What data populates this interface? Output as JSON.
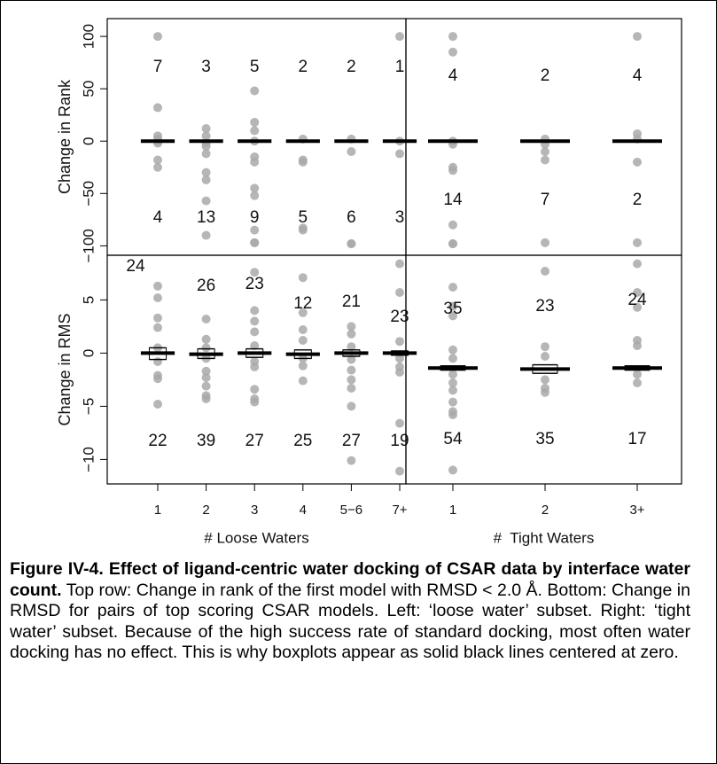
{
  "chart_data": [
    {
      "type": "strip",
      "ylabel": "Change in Rank",
      "ylim": [
        -109,
        117
      ],
      "yticks": [
        {
          "value": -100,
          "label": "−100"
        },
        {
          "value": -50,
          "label": "−50"
        },
        0,
        50,
        100
      ],
      "points": [
        [
          100,
          32,
          5,
          2,
          0,
          -2,
          -18,
          -25
        ],
        [
          12,
          5,
          -2,
          -5,
          -12,
          -30,
          -37,
          -57,
          -90
        ],
        [
          48,
          18,
          10,
          0,
          -15,
          -20,
          -45,
          -52,
          -85,
          -97,
          -97
        ],
        [
          2,
          -20,
          -18,
          -83,
          -85
        ],
        [
          2,
          -10,
          -98,
          -98
        ],
        [
          100,
          0,
          -12
        ]
      ],
      "medians": [
        0,
        0,
        0,
        0,
        0,
        0
      ],
      "counts_above": [
        7,
        3,
        5,
        2,
        2,
        1
      ],
      "counts_below": [
        4,
        13,
        9,
        5,
        6,
        3
      ]
    },
    {
      "type": "strip",
      "ylim": [
        -109,
        117
      ],
      "points": [
        [
          100,
          85,
          0,
          -3,
          -25,
          -28,
          -80,
          -98,
          -98
        ],
        [
          2,
          -3,
          -10,
          -18,
          -97
        ],
        [
          100,
          7,
          2,
          -20,
          -97
        ]
      ],
      "medians": [
        0,
        0,
        0
      ],
      "counts_above": [
        4,
        2,
        4
      ],
      "counts_below": [
        14,
        7,
        2
      ]
    },
    {
      "type": "strip",
      "ylabel": "Change in RMS",
      "xlabel": "# Loose Waters",
      "categories": [
        "1",
        "2",
        "3",
        "4",
        "5−6",
        "7+"
      ],
      "ylim": [
        -12.3,
        9.2
      ],
      "yticks": [
        {
          "value": -10,
          "label": "−10"
        },
        {
          "value": -5,
          "label": "−5"
        },
        0,
        5
      ],
      "points": [
        [
          6.3,
          5.2,
          3.3,
          2.4,
          0.5,
          -0.8,
          -2.1,
          -2.4,
          -4.8
        ],
        [
          3.2,
          1.3,
          0.5,
          -0.5,
          -1.7,
          -2.3,
          -3.1,
          -4.0,
          -4.3
        ],
        [
          7.6,
          4.0,
          3.0,
          2.0,
          0.7,
          -0.8,
          -1.3,
          -3.4,
          -4.3,
          -4.6
        ],
        [
          7.1,
          3.8,
          2.2,
          1.2,
          -0.5,
          -1.2,
          -2.6
        ],
        [
          2.5,
          1.8,
          0.6,
          -0.6,
          -1.6,
          -2.5,
          -3.3,
          -5.0,
          -10.1
        ],
        [
          8.4,
          5.7,
          1.1,
          -0.5,
          -1.3,
          -1.8,
          -6.6,
          -11.1
        ]
      ],
      "medians": [
        0,
        -0.1,
        0,
        -0.1,
        0,
        0
      ],
      "box_low": [
        -0.6,
        -0.5,
        -0.4,
        -0.5,
        -0.3,
        -0.2
      ],
      "box_high": [
        0.5,
        0.4,
        0.4,
        0.3,
        0.3,
        0.2
      ],
      "counts_above": [
        24,
        26,
        23,
        12,
        21,
        23
      ],
      "counts_below": [
        22,
        39,
        27,
        25,
        27,
        19
      ]
    },
    {
      "type": "strip",
      "xlabel": "#  Tight Waters",
      "categories": [
        "1",
        "2",
        "3+"
      ],
      "ylim": [
        -12.3,
        9.2
      ],
      "points": [
        [
          6.2,
          4.4,
          3.5,
          0.3,
          -0.5,
          -2.0,
          -2.8,
          -3.5,
          -4.6,
          -5.5,
          -5.8,
          -11.0
        ],
        [
          7.7,
          0.6,
          -0.3,
          -2.5,
          -3.3,
          -3.7
        ],
        [
          8.4,
          5.7,
          4.3,
          1.2,
          0.7,
          -2.0,
          -2.8
        ]
      ],
      "medians": [
        -1.4,
        -1.5,
        -1.4
      ],
      "box_low": [
        -1.6,
        -1.9,
        -1.6
      ],
      "box_high": [
        -1.2,
        -1.1,
        -1.2
      ],
      "counts_above": [
        35,
        23,
        24
      ],
      "counts_below": [
        54,
        35,
        17
      ]
    }
  ],
  "caption": {
    "label": "Figure IV-4. Effect of ligand-centric water docking of CSAR data by interface water count.",
    "text": "Top row: Change in rank of the first model with RMSD < 2.0 Å. Bottom: Change in RMSD for pairs of top scoring CSAR models. Left: ‘loose water’ subset. Right: ‘tight water’ subset. Because of the high success rate of standard docking, most often water docking has no effect. This is why boxplots appear as solid black lines centered at zero."
  }
}
